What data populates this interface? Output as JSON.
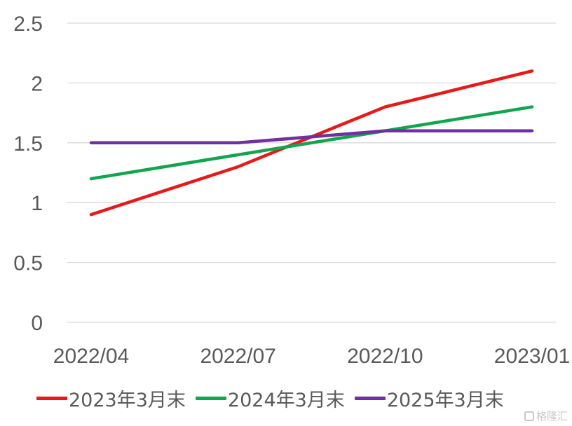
{
  "chart_data": {
    "type": "line",
    "x": [
      "2022/04",
      "2022/07",
      "2022/10",
      "2023/01"
    ],
    "ylim": [
      0,
      2.5
    ],
    "yticks": [
      "0",
      "0.5",
      "1",
      "1.5",
      "2",
      "2.5"
    ],
    "grid": true,
    "legend_position": "bottom",
    "series": [
      {
        "name": "2023年3月末",
        "color": "#e8191a",
        "values": [
          0.9,
          1.3,
          1.8,
          2.1
        ]
      },
      {
        "name": "2024年3月末",
        "color": "#12a54e",
        "values": [
          1.2,
          1.4,
          1.6,
          1.8
        ]
      },
      {
        "name": "2025年3月末",
        "color": "#7030a0",
        "values": [
          1.5,
          1.5,
          1.6,
          1.6
        ]
      }
    ]
  },
  "watermark": {
    "text": "格隆汇",
    "icon": "glh-logo-icon"
  }
}
